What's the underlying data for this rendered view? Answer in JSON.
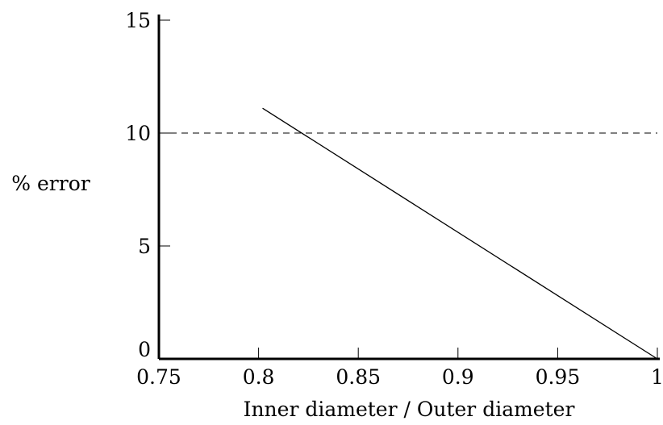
{
  "chart_data": {
    "type": "line",
    "title": "",
    "xlabel": "Inner diameter / Outer diameter",
    "ylabel": "% error",
    "xlim": [
      0.75,
      1.0
    ],
    "ylim": [
      0,
      15
    ],
    "x_ticks": [
      {
        "value": 0.75,
        "label": "0.75"
      },
      {
        "value": 0.8,
        "label": "0.8"
      },
      {
        "value": 0.85,
        "label": "0.85"
      },
      {
        "value": 0.9,
        "label": "0.9"
      },
      {
        "value": 0.95,
        "label": "0.95"
      },
      {
        "value": 1.0,
        "label": "1"
      }
    ],
    "y_ticks": [
      {
        "value": 0,
        "label": "0"
      },
      {
        "value": 5,
        "label": "5"
      },
      {
        "value": 10,
        "label": "10"
      },
      {
        "value": 15,
        "label": "15"
      }
    ],
    "grid": false,
    "series": [
      {
        "style": "solid",
        "color": "#000000",
        "x": [
          0.802,
          1.0
        ],
        "y": [
          11.1,
          0
        ]
      }
    ],
    "reference_lines": [
      {
        "axis": "y",
        "value": 10,
        "style": "dashed",
        "color": "#000000"
      }
    ]
  }
}
